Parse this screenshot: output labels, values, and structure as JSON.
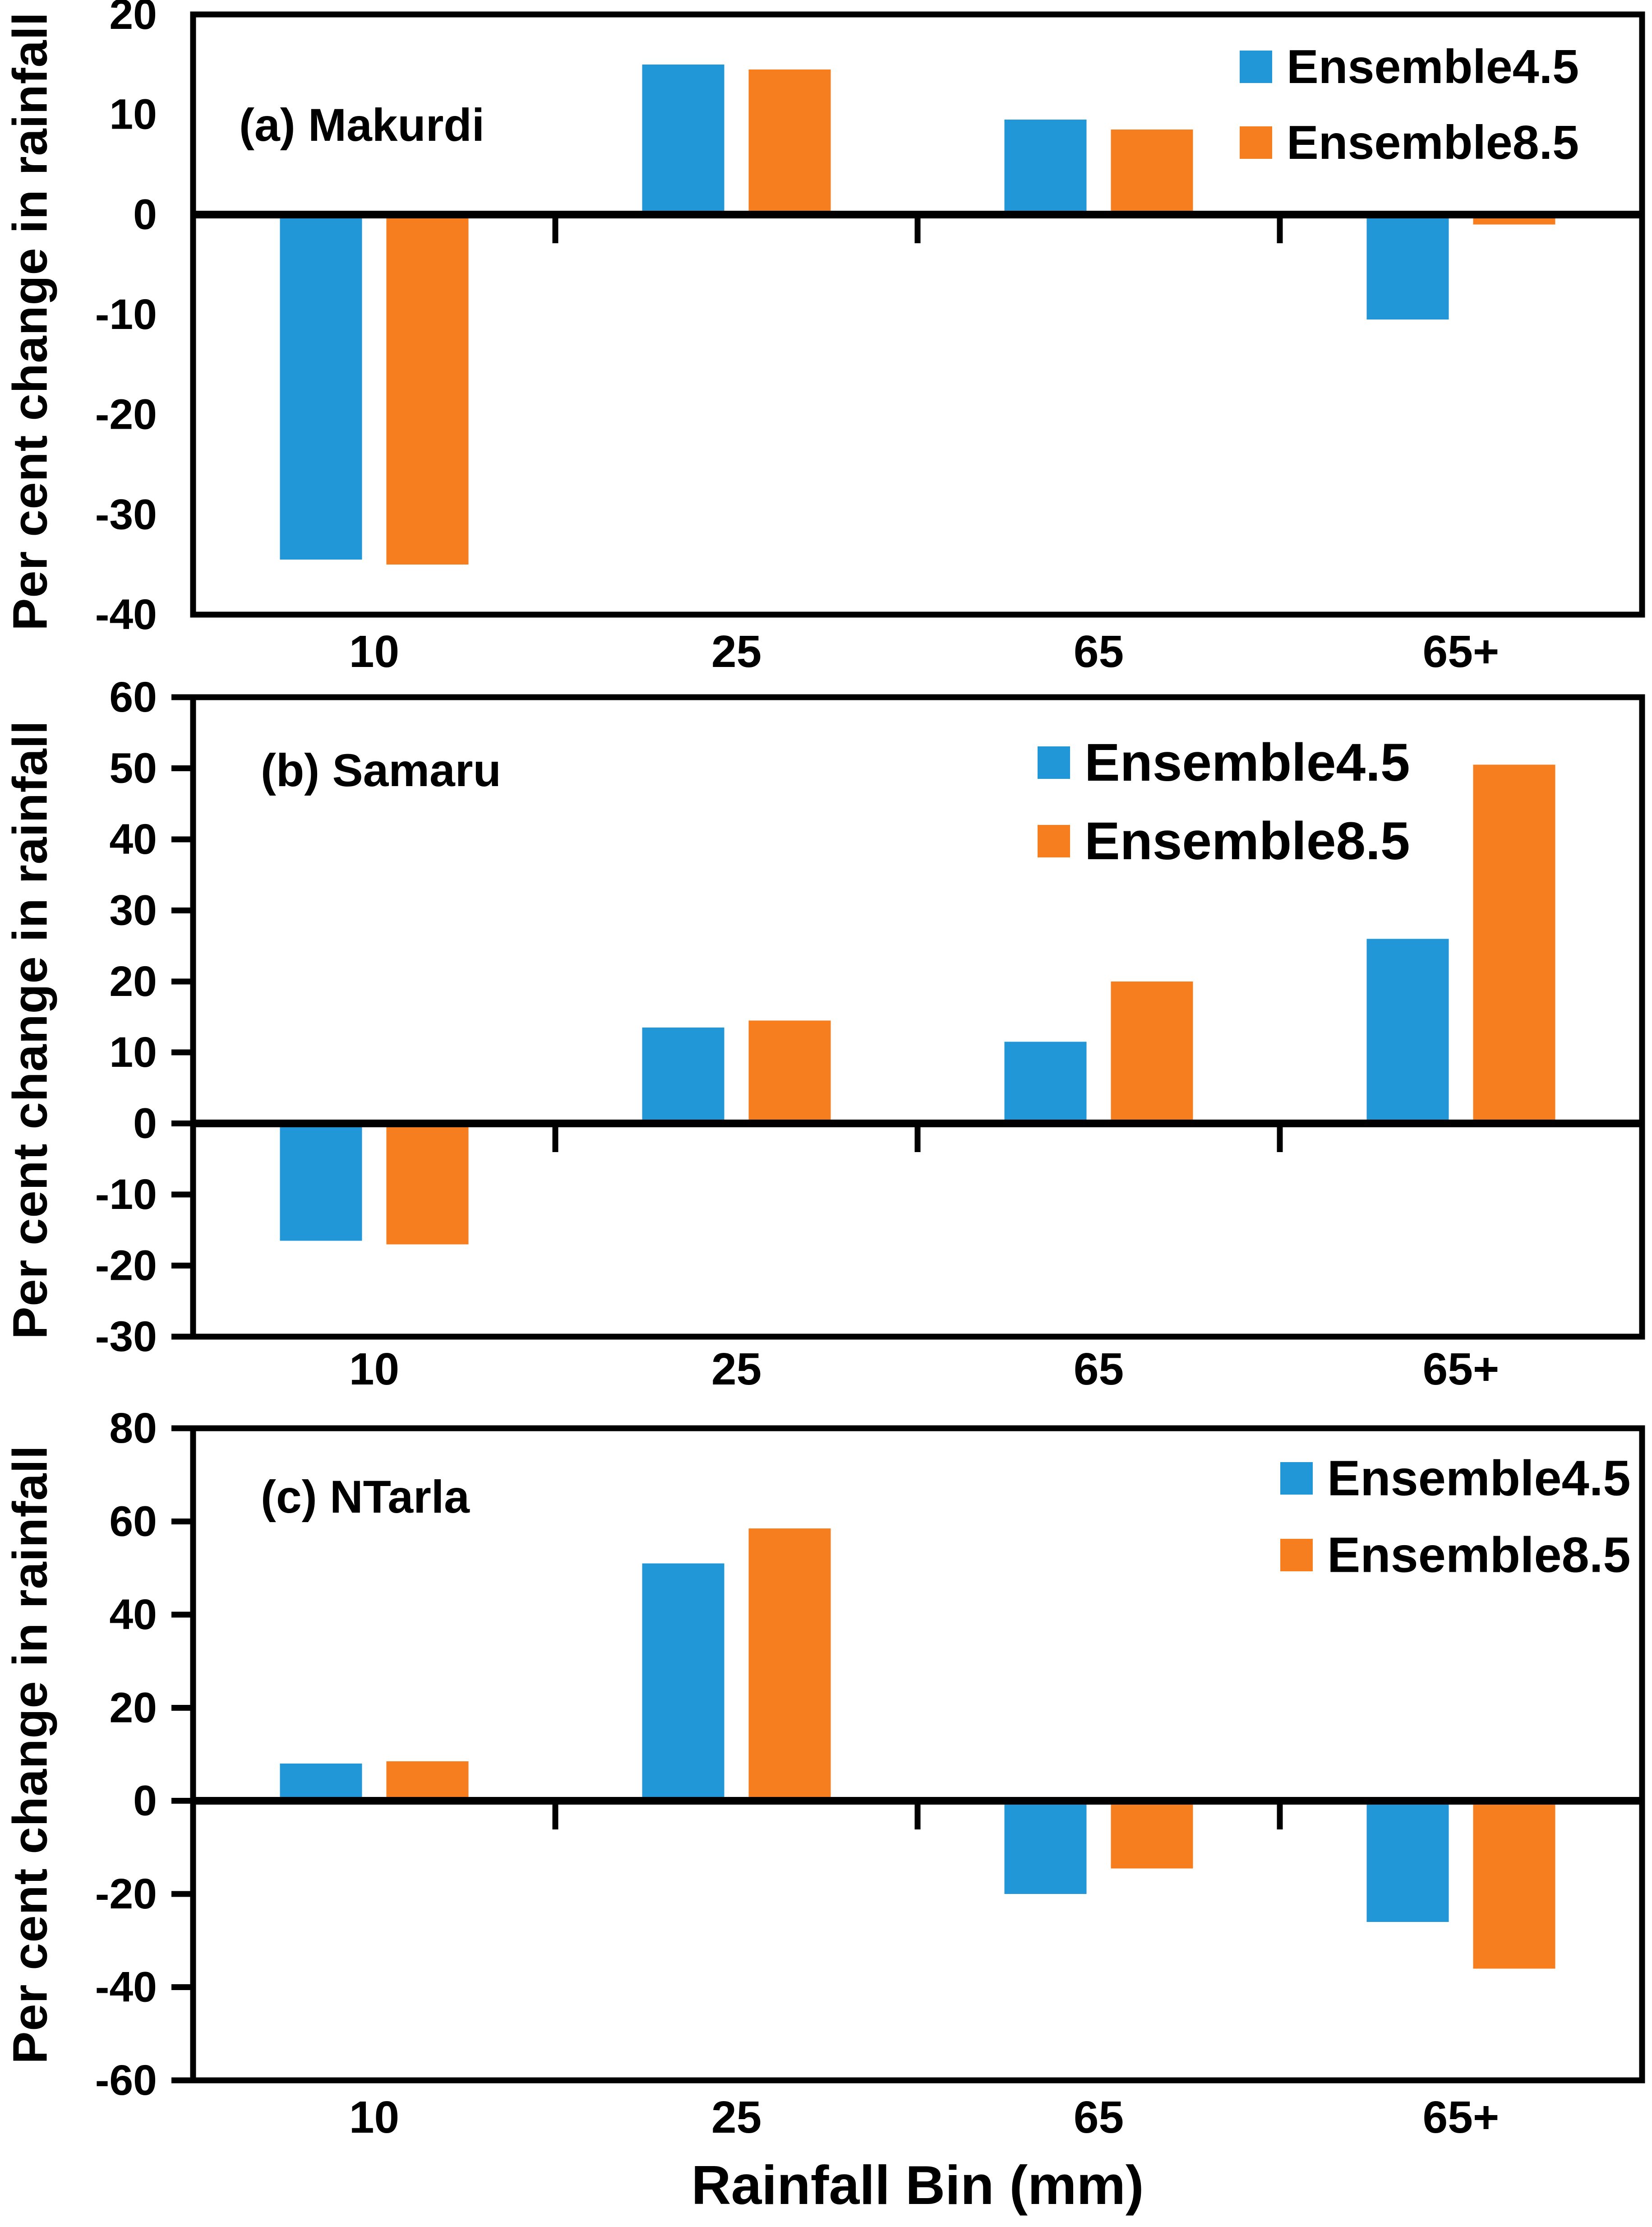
{
  "figure": {
    "y_axis_label": "Per cent change in rainfall",
    "x_axis_label": "Rainfall Bin (mm)",
    "legend_labels": [
      "Ensemble4.5",
      "Ensemble8.5"
    ],
    "colors": {
      "ensemble45": "#2297d7",
      "ensemble85": "#f67e1f",
      "axis": "#000000",
      "background": "#ffffff"
    }
  },
  "chart_data": [
    {
      "type": "bar",
      "panel_id": "a",
      "title": "(a) Makurdi",
      "categories": [
        "10",
        "25",
        "65",
        "65+"
      ],
      "series": [
        {
          "name": "Ensemble4.5",
          "color": "#2297d7",
          "values": [
            -34.5,
            15,
            9.5,
            -10.5
          ]
        },
        {
          "name": "Ensemble8.5",
          "color": "#f67e1f",
          "values": [
            -35,
            14.5,
            8.5,
            -1
          ]
        }
      ],
      "xlabel": "Rainfall Bin (mm)",
      "ylabel": "Per cent change in rainfall",
      "ylim": [
        -40,
        20
      ],
      "yticks": [
        20,
        10,
        0,
        -10,
        -20,
        -30,
        -40
      ],
      "ytick_marks_visible": false,
      "legend_position": "top-right",
      "grid": false
    },
    {
      "type": "bar",
      "panel_id": "b",
      "title": "(b) Samaru",
      "categories": [
        "10",
        "25",
        "65",
        "65+"
      ],
      "series": [
        {
          "name": "Ensemble4.5",
          "color": "#2297d7",
          "values": [
            -16.5,
            13.5,
            11.5,
            26
          ]
        },
        {
          "name": "Ensemble8.5",
          "color": "#f67e1f",
          "values": [
            -17,
            14.5,
            20,
            50.5
          ]
        }
      ],
      "xlabel": "Rainfall Bin (mm)",
      "ylabel": "Per cent change in rainfall",
      "ylim": [
        -30,
        60
      ],
      "yticks": [
        60,
        50,
        40,
        30,
        20,
        10,
        0,
        -10,
        -20,
        -30
      ],
      "ytick_marks_visible": true,
      "legend_position": "top-right",
      "grid": false
    },
    {
      "type": "bar",
      "panel_id": "c",
      "title": "(c) NTarla",
      "categories": [
        "10",
        "25",
        "65",
        "65+"
      ],
      "series": [
        {
          "name": "Ensemble4.5",
          "color": "#2297d7",
          "values": [
            8,
            51,
            -20,
            -26
          ]
        },
        {
          "name": "Ensemble8.5",
          "color": "#f67e1f",
          "values": [
            8.5,
            58.5,
            -14.5,
            -36
          ]
        }
      ],
      "xlabel": "Rainfall Bin (mm)",
      "ylabel": "Per cent change in rainfall",
      "ylim": [
        -60,
        80
      ],
      "yticks": [
        80,
        60,
        40,
        20,
        0,
        -20,
        -40,
        -60
      ],
      "ytick_marks_visible": true,
      "legend_position": "top-right",
      "grid": false
    }
  ]
}
